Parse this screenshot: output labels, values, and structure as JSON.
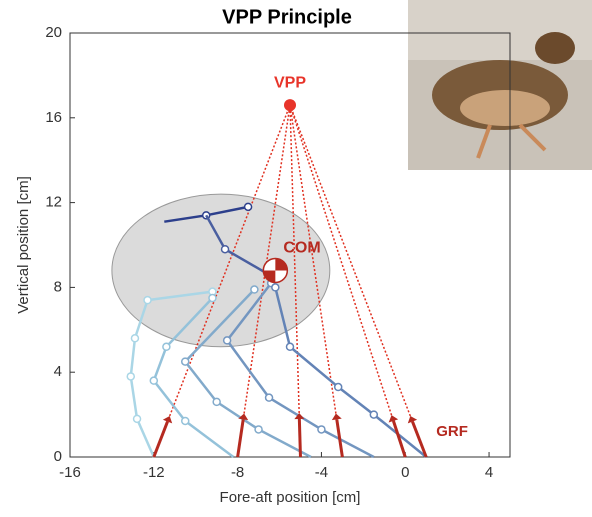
{
  "chart_data": {
    "type": "line",
    "title": "VPP Principle",
    "xlabel": "Fore-aft position [cm]",
    "ylabel": "Vertical position [cm]",
    "xlim": [
      -16,
      5
    ],
    "ylim": [
      0,
      20
    ],
    "xticks": [
      -16,
      -12,
      -8,
      -4,
      0,
      4
    ],
    "yticks": [
      0,
      4,
      8,
      12,
      16,
      20
    ],
    "series": [
      {
        "color": "#aad6e6",
        "x": [
          -12,
          -12.8,
          -13.1,
          -12.9,
          -12.3,
          -9.2
        ],
        "y": [
          0,
          1.8,
          3.8,
          5.6,
          7.4,
          7.8
        ]
      },
      {
        "color": "#94c2da",
        "x": [
          -8.2,
          -10.5,
          -12,
          -11.4,
          -9.2
        ],
        "y": [
          0,
          1.7,
          3.6,
          5.2,
          7.5
        ]
      },
      {
        "color": "#82aacb",
        "x": [
          -4.5,
          -7,
          -9,
          -10.5,
          -7.2
        ],
        "y": [
          0,
          1.3,
          2.6,
          4.5,
          7.9
        ]
      },
      {
        "color": "#7396c0",
        "x": [
          -1.5,
          -4,
          -6.5,
          -8.5,
          -6.4
        ],
        "y": [
          0,
          1.3,
          2.8,
          5.5,
          8.2
        ]
      },
      {
        "color": "#6383b6",
        "x": [
          1,
          -1.5,
          -3.2,
          -5.5,
          -6.2
        ],
        "y": [
          0,
          2,
          3.3,
          5.2,
          8
        ]
      },
      {
        "color": "#2c3f8c",
        "x": [
          -11.5,
          -9.5,
          -7.5
        ],
        "y": [
          11.1,
          11.4,
          11.8
        ]
      },
      {
        "color": "#4a5fa0",
        "x": [
          -9.5,
          -8.6,
          -6.5
        ],
        "y": [
          11.4,
          9.8,
          8.6
        ]
      }
    ],
    "com_region": {
      "cx": -8.8,
      "cy": 8.8,
      "rx": 5.2,
      "ry": 3.6
    },
    "com": {
      "x": -6.2,
      "y": 8.8,
      "label": "COM"
    },
    "vpp": {
      "x": -5.5,
      "y": 16.6,
      "label": "VPP"
    },
    "grf_x": [
      -12,
      -8,
      -5,
      -3,
      0,
      1
    ],
    "grf_label": "GRF"
  }
}
